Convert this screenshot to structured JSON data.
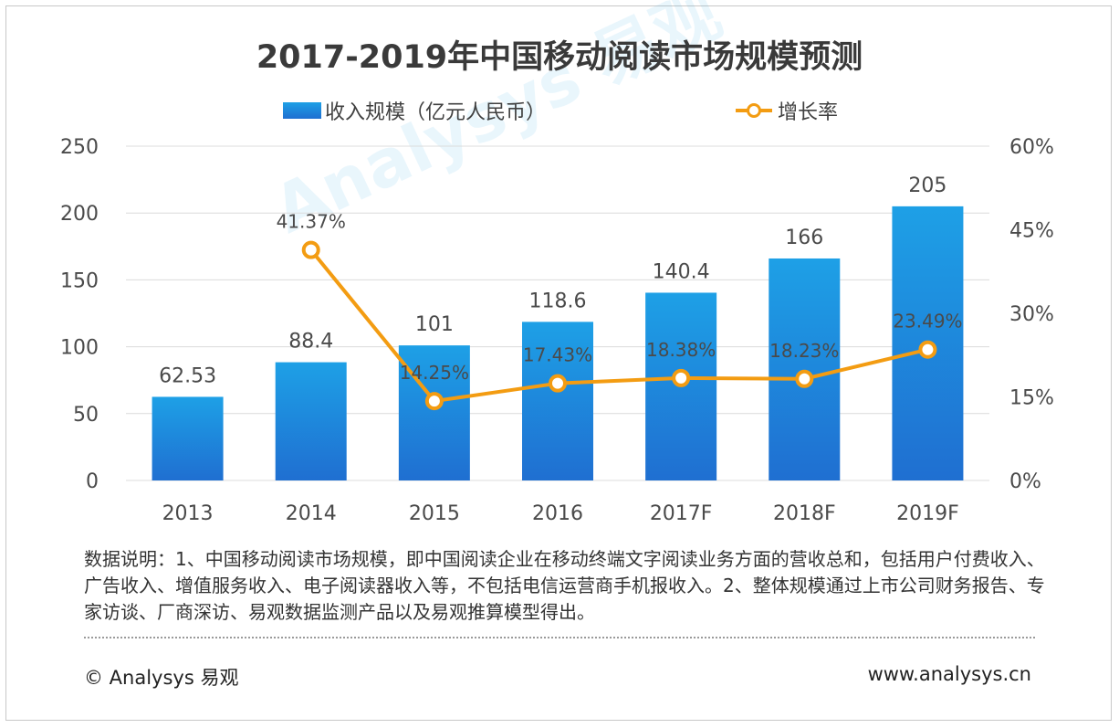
{
  "title": "2017-2019年中国移动阅读市场规模预测",
  "legend": {
    "bar_label": "收入规模（亿元人民币）",
    "line_label": "增长率"
  },
  "colors": {
    "bar_top": "#1ea0e6",
    "bar_bottom": "#1f6fd1",
    "line": "#f39c12",
    "grid": "#dcdcdc"
  },
  "chart_data": {
    "type": "bar",
    "categories": [
      "2013",
      "2014",
      "2015",
      "2016",
      "2017F",
      "2018F",
      "2019F"
    ],
    "series": [
      {
        "name": "收入规模（亿元人民币）",
        "type": "bar",
        "axis": "left",
        "values": [
          62.53,
          88.4,
          101,
          118.6,
          140.4,
          166,
          205
        ],
        "labels": [
          "62.53",
          "88.4",
          "101",
          "118.6",
          "140.4",
          "166",
          "205"
        ]
      },
      {
        "name": "增长率",
        "type": "line",
        "axis": "right",
        "values": [
          null,
          41.37,
          14.25,
          17.43,
          18.38,
          18.23,
          23.49
        ],
        "labels": [
          "",
          "41.37%",
          "14.25%",
          "17.43%",
          "18.38%",
          "18.23%",
          "23.49%"
        ]
      }
    ],
    "left_axis": {
      "ylim": [
        0,
        250
      ],
      "ticks": [
        "0",
        "50",
        "100",
        "150",
        "200",
        "250"
      ]
    },
    "right_axis": {
      "ylim": [
        0,
        60
      ],
      "ticks": [
        "0%",
        "15%",
        "30%",
        "45%",
        "60%"
      ]
    },
    "grid": true,
    "legend_position": "top"
  },
  "note": "数据说明：1、中国移动阅读市场规模，即中国阅读企业在移动终端文字阅读业务方面的营收总和，包括用户付费收入、广告收入、增值服务收入、电子阅读器收入等，不包括电信运营商手机报收入。2、整体规模通过上市公司财务报告、专家访谈、厂商深访、易观数据监测产品以及易观推算模型得出。",
  "footer": {
    "copyright": "© Analysys 易观",
    "website": "www.analysys.cn"
  },
  "watermark": "Analysys 易观"
}
